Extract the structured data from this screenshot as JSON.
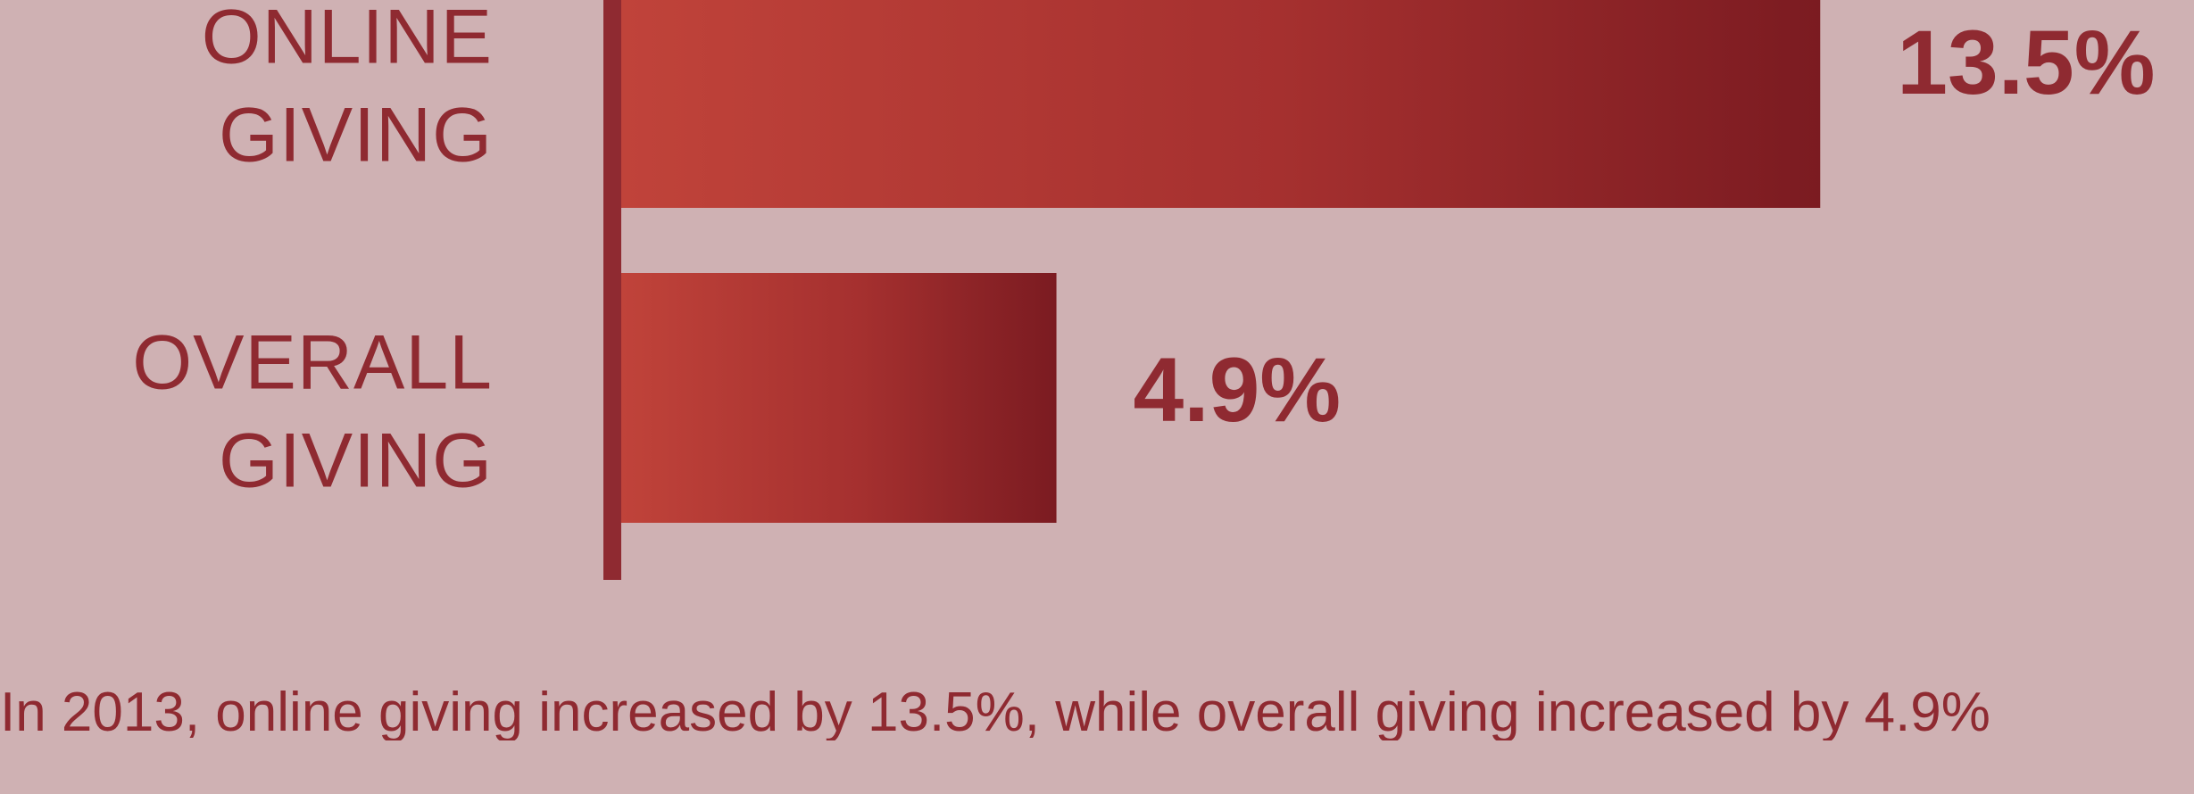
{
  "colors": {
    "background": "#cfb1b3",
    "accent": "#8f2a31",
    "bar_light": "#c0433a",
    "bar_dark": "#7b1b21"
  },
  "chart_data": {
    "type": "bar",
    "orientation": "horizontal",
    "categories": [
      [
        "ONLINE",
        "GIVING"
      ],
      [
        "OVERALL",
        "GIVING"
      ]
    ],
    "values": [
      13.5,
      4.9
    ],
    "value_labels": [
      "13.5%",
      "4.9%"
    ],
    "title": "",
    "xlabel": "",
    "ylabel": "",
    "xlim": [
      0,
      15.3
    ],
    "grid": false
  },
  "caption": "In 2013, online giving increased by 13.5%, while overall giving increased by 4.9%"
}
